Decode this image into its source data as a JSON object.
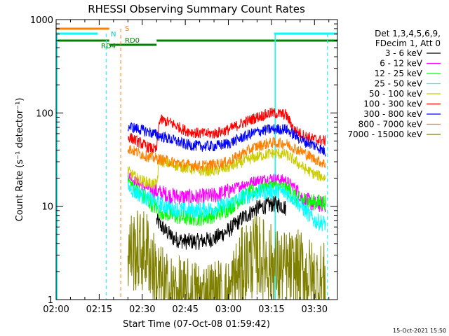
{
  "chart_data": {
    "type": "line",
    "title": "RHESSI Observing Summary Count Rates",
    "xlabel": "Start Time (07-Oct-08 01:59:42)",
    "ylabel": "Count Rate (s⁻¹ detector⁻¹)",
    "yscale": "log",
    "ylim": [
      1,
      1000
    ],
    "xlim_minutes": [
      0,
      98
    ],
    "x_ticks": [
      {
        "m": 0,
        "label": "02:00"
      },
      {
        "m": 15,
        "label": "02:15"
      },
      {
        "m": 30,
        "label": "02:30"
      },
      {
        "m": 45,
        "label": "02:45"
      },
      {
        "m": 60,
        "label": "03:00"
      },
      {
        "m": 75,
        "label": "03:15"
      },
      {
        "m": 90,
        "label": "03:30"
      }
    ],
    "y_ticks": [
      {
        "v": 1,
        "label": "1"
      },
      {
        "v": 10,
        "label": "10"
      },
      {
        "v": 100,
        "label": "100"
      },
      {
        "v": 1000,
        "label": "1000"
      }
    ],
    "legend_header": [
      "Det 1,3,4,5,6,9,",
      "FDecim 1, Att 0"
    ],
    "legend_position": "right",
    "series": [
      {
        "name": "3 - 6 keV",
        "color": "#000000",
        "points": [
          [
            35,
            7
          ],
          [
            38,
            5.5
          ],
          [
            41,
            4.5
          ],
          [
            45,
            4.2
          ],
          [
            50,
            4.2
          ],
          [
            55,
            4.5
          ],
          [
            60,
            5.5
          ],
          [
            65,
            7.5
          ],
          [
            70,
            9.5
          ],
          [
            75,
            10.5
          ],
          [
            78,
            10.5
          ],
          [
            80,
            9.5
          ]
        ]
      },
      {
        "name": "6 - 12 keV",
        "color": "#ff00ff",
        "points": [
          [
            25,
            22
          ],
          [
            28,
            18
          ],
          [
            32,
            15.5
          ],
          [
            36,
            14
          ],
          [
            40,
            13
          ],
          [
            45,
            12.5
          ],
          [
            50,
            12.5
          ],
          [
            55,
            13
          ],
          [
            60,
            14.5
          ],
          [
            65,
            17
          ],
          [
            70,
            19
          ],
          [
            75,
            20
          ],
          [
            80,
            19
          ],
          [
            83,
            16
          ],
          [
            86,
            12
          ],
          [
            90,
            10.5
          ],
          [
            94,
            10.5
          ]
        ]
      },
      {
        "name": "12 - 25 keV",
        "color": "#00ff00",
        "points": [
          [
            25,
            19
          ],
          [
            28,
            15
          ],
          [
            32,
            11.5
          ],
          [
            36,
            9
          ],
          [
            40,
            8
          ],
          [
            45,
            7.5
          ],
          [
            50,
            7.5
          ],
          [
            55,
            8
          ],
          [
            60,
            9.5
          ],
          [
            65,
            12.5
          ],
          [
            70,
            15
          ],
          [
            75,
            17
          ],
          [
            80,
            16
          ],
          [
            84,
            12
          ],
          [
            90,
            11
          ],
          [
            94,
            11
          ]
        ]
      },
      {
        "name": "25 - 50 keV",
        "color": "#00ffff",
        "points": [
          [
            25,
            16
          ],
          [
            28,
            14
          ],
          [
            32,
            12
          ],
          [
            36,
            10.5
          ],
          [
            40,
            9.5
          ],
          [
            45,
            9
          ],
          [
            50,
            9
          ],
          [
            55,
            9.5
          ],
          [
            60,
            10.5
          ],
          [
            65,
            12.5
          ],
          [
            70,
            14
          ],
          [
            75,
            14.5
          ],
          [
            80,
            14
          ],
          [
            83,
            12
          ],
          [
            86,
            9.5
          ],
          [
            90,
            7
          ],
          [
            94,
            6.5
          ]
        ]
      },
      {
        "name": "50 - 100 keV",
        "color": "#cccc00",
        "points": [
          [
            25,
            24
          ],
          [
            28,
            20
          ],
          [
            32,
            18
          ],
          [
            35,
            17
          ],
          [
            36,
            31
          ],
          [
            40,
            28
          ],
          [
            45,
            26
          ],
          [
            50,
            24
          ],
          [
            55,
            24
          ],
          [
            60,
            26
          ],
          [
            65,
            30
          ],
          [
            70,
            34
          ],
          [
            75,
            37
          ],
          [
            80,
            36
          ],
          [
            83,
            31
          ],
          [
            86,
            26
          ],
          [
            90,
            22
          ],
          [
            94,
            20
          ]
        ]
      },
      {
        "name": "100 - 300 keV",
        "color": "#ff0000",
        "points": [
          [
            25,
            56
          ],
          [
            28,
            50
          ],
          [
            32,
            43
          ],
          [
            35,
            40
          ],
          [
            36,
            85
          ],
          [
            40,
            78
          ],
          [
            45,
            65
          ],
          [
            50,
            60
          ],
          [
            55,
            60
          ],
          [
            60,
            66
          ],
          [
            65,
            78
          ],
          [
            70,
            90
          ],
          [
            75,
            100
          ],
          [
            80,
            96
          ],
          [
            83,
            66
          ],
          [
            86,
            58
          ],
          [
            90,
            52
          ],
          [
            94,
            50
          ]
        ]
      },
      {
        "name": "300 - 800 keV",
        "color": "#0000ff",
        "points": [
          [
            25,
            72
          ],
          [
            28,
            68
          ],
          [
            32,
            63
          ],
          [
            36,
            57
          ],
          [
            40,
            52
          ],
          [
            45,
            46
          ],
          [
            50,
            44
          ],
          [
            55,
            44
          ],
          [
            60,
            47
          ],
          [
            65,
            55
          ],
          [
            70,
            63
          ],
          [
            75,
            67
          ],
          [
            80,
            67
          ],
          [
            83,
            58
          ],
          [
            86,
            50
          ],
          [
            90,
            45
          ],
          [
            94,
            38
          ]
        ]
      },
      {
        "name": "800 - 7000 keV",
        "color": "#ff8000",
        "points": [
          [
            25,
            42
          ],
          [
            28,
            38
          ],
          [
            32,
            34
          ],
          [
            36,
            32
          ],
          [
            40,
            30
          ],
          [
            45,
            28
          ],
          [
            50,
            27
          ],
          [
            55,
            28
          ],
          [
            60,
            30
          ],
          [
            65,
            37
          ],
          [
            70,
            44
          ],
          [
            75,
            48
          ],
          [
            80,
            47
          ],
          [
            83,
            42
          ],
          [
            86,
            38
          ],
          [
            90,
            32
          ],
          [
            94,
            28
          ]
        ]
      },
      {
        "name": "7000 - 15000 keV",
        "color": "#808000",
        "points": [
          [
            25,
            3.3
          ],
          [
            32,
            3.3
          ],
          [
            34,
            2
          ],
          [
            38,
            1.2
          ],
          [
            45,
            1
          ],
          [
            60,
            1
          ],
          [
            62,
            1.5
          ],
          [
            66,
            2.5
          ],
          [
            70,
            3
          ],
          [
            74,
            2.5
          ],
          [
            78,
            2
          ],
          [
            82,
            2
          ],
          [
            86,
            2
          ],
          [
            90,
            1.5
          ],
          [
            94,
            1.5
          ]
        ]
      }
    ],
    "annotations": [
      {
        "label": "S",
        "color": "#ff8000"
      },
      {
        "label": "N",
        "color": "#00ffff"
      },
      {
        "label": "RD0",
        "color": "#008000"
      },
      {
        "label": "RD4",
        "color": "#008000"
      }
    ],
    "footer_date": "15-Oct-2021 15:50"
  }
}
